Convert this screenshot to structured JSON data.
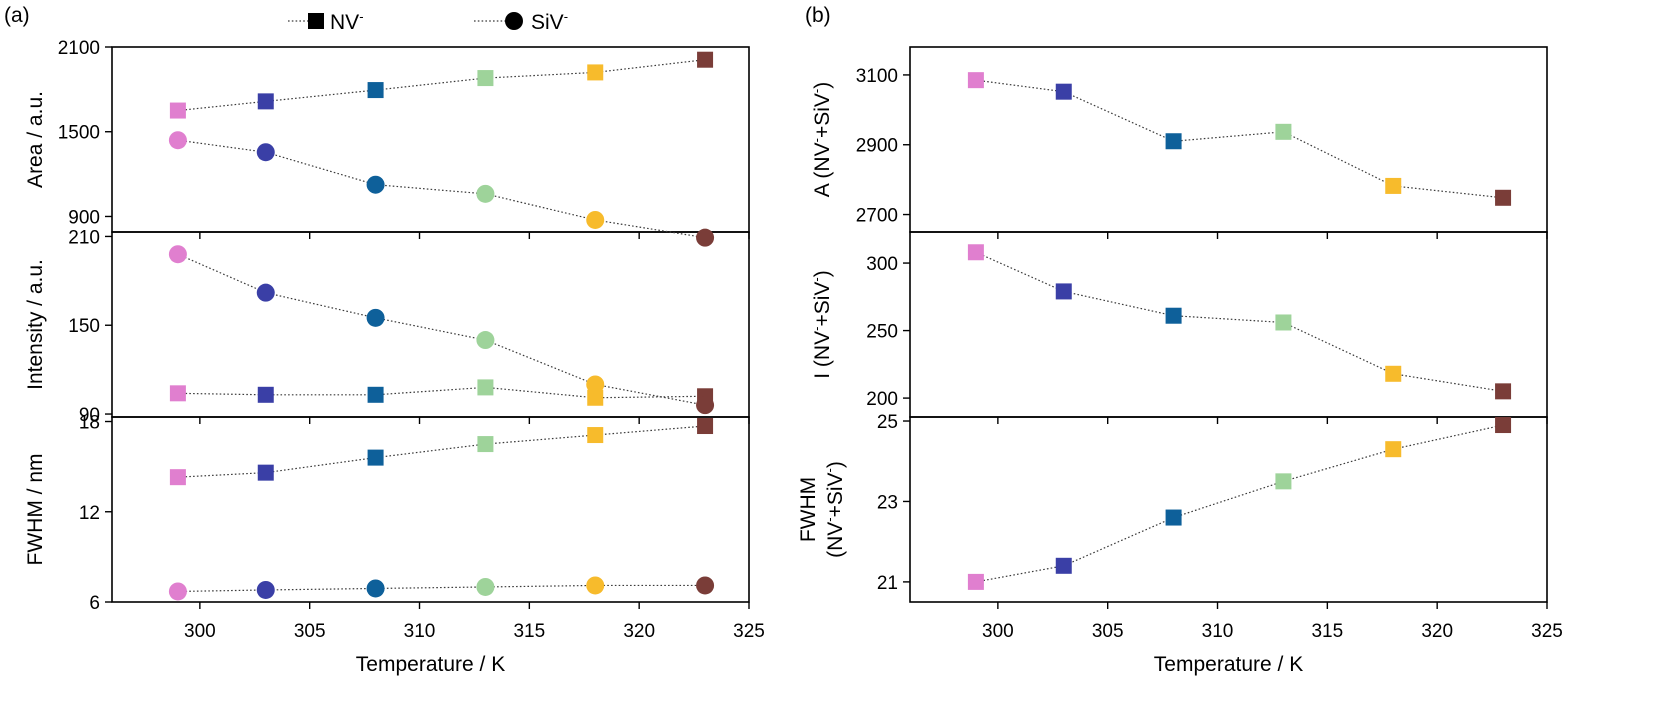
{
  "panels": {
    "a": "(a)",
    "b": "(b)"
  },
  "legend": [
    {
      "label": "NV",
      "sup": "-",
      "marker": "square"
    },
    {
      "label": "SiV",
      "sup": "-",
      "marker": "circle"
    }
  ],
  "colors": {
    "299": "#e07fcf",
    "303": "#3a3fa6",
    "308": "#0e609a",
    "313": "#9ed39a",
    "318": "#f7bb2c",
    "323": "#7a3d38",
    "legend_marker": "#000000"
  },
  "chart_data": [
    {
      "id": "a-area",
      "type": "scatter",
      "panel": "(a)",
      "x": [
        299,
        303,
        308,
        313,
        318,
        323
      ],
      "xlim": [
        296,
        325
      ],
      "xticks": [
        300,
        305,
        310,
        315,
        320,
        325
      ],
      "xlabel": "",
      "ylabel": "Area / a.u.",
      "ylim": [
        790,
        2100
      ],
      "yticks": [
        900,
        1500,
        2100
      ],
      "series": [
        {
          "name": "NV-",
          "marker": "square",
          "values": [
            1650,
            1715,
            1795,
            1880,
            1920,
            2010
          ]
        },
        {
          "name": "SiV-",
          "marker": "circle",
          "values": [
            1440,
            1355,
            1125,
            1060,
            875,
            750
          ]
        }
      ]
    },
    {
      "id": "a-intensity",
      "type": "scatter",
      "panel": "(a)",
      "x": [
        299,
        303,
        308,
        313,
        318,
        323
      ],
      "xlim": [
        296,
        325
      ],
      "xticks": [
        300,
        305,
        310,
        315,
        320,
        325
      ],
      "xlabel": "",
      "ylabel": "Intensity / a.u.",
      "ylim": [
        88,
        213
      ],
      "yticks": [
        90,
        150,
        210
      ],
      "series": [
        {
          "name": "NV-",
          "marker": "square",
          "values": [
            104,
            103,
            103,
            108,
            101,
            102
          ]
        },
        {
          "name": "SiV-",
          "marker": "circle",
          "values": [
            198,
            172,
            155,
            140,
            110,
            96
          ]
        }
      ]
    },
    {
      "id": "a-fwhm",
      "type": "scatter",
      "panel": "(a)",
      "x": [
        299,
        303,
        308,
        313,
        318,
        323
      ],
      "xlim": [
        296,
        325
      ],
      "xticks": [
        300,
        305,
        310,
        315,
        320,
        325
      ],
      "xlabel": "Temperature / K",
      "ylabel": "FWHM / nm",
      "ylim": [
        6,
        18.3
      ],
      "yticks": [
        6,
        12,
        18
      ],
      "series": [
        {
          "name": "NV-",
          "marker": "square",
          "values": [
            14.3,
            14.6,
            15.6,
            16.5,
            17.1,
            17.7
          ]
        },
        {
          "name": "SiV-",
          "marker": "circle",
          "values": [
            6.7,
            6.8,
            6.9,
            7.0,
            7.1,
            7.1
          ]
        }
      ]
    },
    {
      "id": "b-area",
      "type": "scatter",
      "panel": "(b)",
      "x": [
        299,
        303,
        308,
        313,
        318,
        323
      ],
      "xlim": [
        296,
        325
      ],
      "xticks": [
        300,
        305,
        310,
        315,
        320,
        325
      ],
      "xlabel": "",
      "ylabel_main": "A (NV",
      "ylabel_mid": "+SiV",
      "ylabel_end": ")",
      "ylim": [
        2650,
        3180
      ],
      "yticks": [
        2700,
        2900,
        3100
      ],
      "series": [
        {
          "marker": "square",
          "values": [
            3085,
            3052,
            2910,
            2937,
            2782,
            2748
          ]
        }
      ]
    },
    {
      "id": "b-intensity",
      "type": "scatter",
      "panel": "(b)",
      "x": [
        299,
        303,
        308,
        313,
        318,
        323
      ],
      "xlim": [
        296,
        325
      ],
      "xticks": [
        300,
        305,
        310,
        315,
        320,
        325
      ],
      "xlabel": "",
      "ylabel_main": "I (NV",
      "ylabel_mid": "+SiV",
      "ylabel_end": ")",
      "ylim": [
        186,
        323
      ],
      "yticks": [
        200,
        250,
        300
      ],
      "series": [
        {
          "marker": "square",
          "values": [
            308,
            279,
            261,
            256,
            218,
            205
          ]
        }
      ]
    },
    {
      "id": "b-fwhm",
      "type": "scatter",
      "panel": "(b)",
      "x": [
        299,
        303,
        308,
        313,
        318,
        323
      ],
      "xlim": [
        296,
        325
      ],
      "xticks": [
        300,
        305,
        310,
        315,
        320,
        325
      ],
      "xlabel": "Temperature / K",
      "ylabel_line1": "FWHM",
      "ylabel_main": "(NV",
      "ylabel_mid": "+SiV",
      "ylabel_end": ")",
      "ylim": [
        20.5,
        25.1
      ],
      "yticks": [
        21,
        23,
        25
      ],
      "series": [
        {
          "marker": "square",
          "values": [
            21.0,
            21.4,
            22.6,
            23.5,
            24.3,
            24.9
          ]
        }
      ]
    }
  ]
}
